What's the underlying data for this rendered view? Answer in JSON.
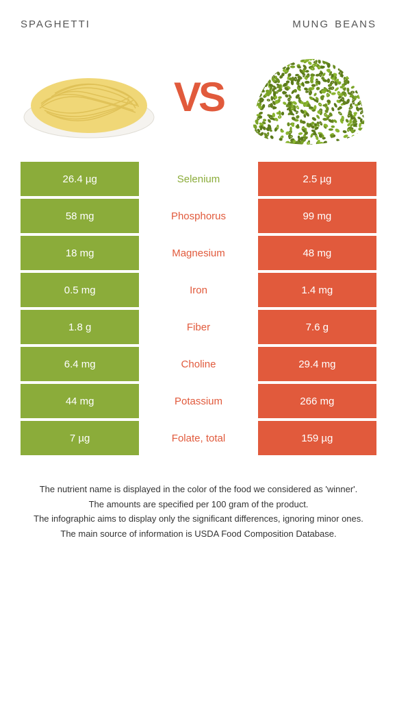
{
  "titles": {
    "left": "spaghetti",
    "right": "mung beans"
  },
  "vs_text": "VS",
  "colors": {
    "left_bg": "#8bac3a",
    "right_bg": "#e15a3c",
    "left_text": "#ffffff",
    "right_text": "#ffffff",
    "vs_color": "#e15a3c",
    "nutrient_left_color": "#8bac3a",
    "nutrient_right_color": "#e15a3c",
    "title_color": "#555555"
  },
  "nutrients": [
    {
      "name": "Selenium",
      "left": "26.4 µg",
      "right": "2.5 µg",
      "winner": "left"
    },
    {
      "name": "Phosphorus",
      "left": "58 mg",
      "right": "99 mg",
      "winner": "right"
    },
    {
      "name": "Magnesium",
      "left": "18 mg",
      "right": "48 mg",
      "winner": "right"
    },
    {
      "name": "Iron",
      "left": "0.5 mg",
      "right": "1.4 mg",
      "winner": "right"
    },
    {
      "name": "Fiber",
      "left": "1.8 g",
      "right": "7.6 g",
      "winner": "right"
    },
    {
      "name": "Choline",
      "left": "6.4 mg",
      "right": "29.4 mg",
      "winner": "right"
    },
    {
      "name": "Potassium",
      "left": "44 mg",
      "right": "266 mg",
      "winner": "right"
    },
    {
      "name": "Folate, total",
      "left": "7 µg",
      "right": "159 µg",
      "winner": "right"
    }
  ],
  "footnotes": [
    "The nutrient name is displayed in the color of the food we considered as 'winner'.",
    "The amounts are specified per 100 gram of the product.",
    "The infographic aims to display only the significant differences, ignoring minor ones.",
    "The main source of information is USDA Food Composition Database."
  ]
}
